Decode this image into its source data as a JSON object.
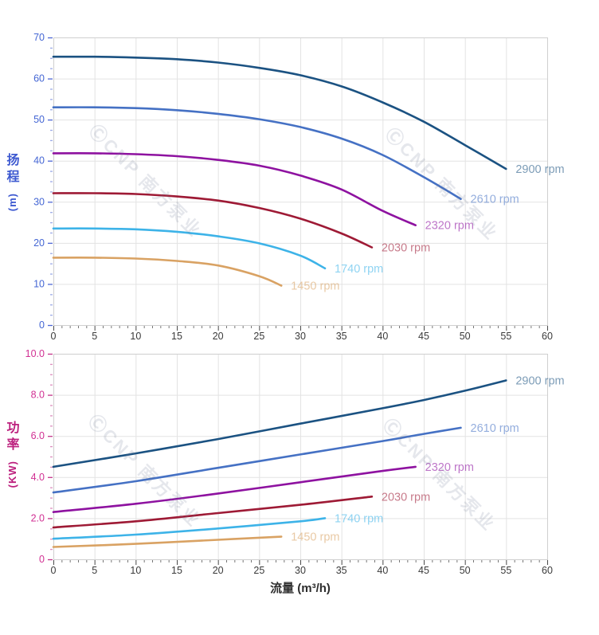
{
  "watermark": {
    "text": "ⒸCNP 南方泵业"
  },
  "chart_data": [
    {
      "type": "line",
      "title": "",
      "ylabel": "扬程 (m)",
      "ylabel_lines": [
        "扬",
        "程"
      ],
      "ylabel_unit": "(m)",
      "xlabel": "",
      "xlim": [
        0,
        60
      ],
      "ylim": [
        0,
        70
      ],
      "grid": true,
      "legend_position": "end-of-line",
      "axis_color": "#3c58d0",
      "tick_label_color": "#4466d4",
      "x_tick_text_color": "#3a3a3a",
      "grid_color": "#e3e3e3",
      "x_ticks": [
        0,
        5,
        10,
        15,
        20,
        25,
        30,
        35,
        40,
        45,
        50,
        55,
        60
      ],
      "x_tick_labels": [
        "0",
        "5",
        "10",
        "15",
        "20",
        "25",
        "30",
        "35",
        "40",
        "45",
        "50",
        "55",
        "60"
      ],
      "y_ticks": [
        0,
        10,
        20,
        30,
        40,
        50,
        60,
        70
      ],
      "y_tick_labels": [
        "0",
        "10",
        "20",
        "30",
        "40",
        "50",
        "60",
        "70"
      ],
      "x_minor_step": 1,
      "y_minor_step": 2.5,
      "series": [
        {
          "name": "2900 rpm",
          "color": "#1b5282",
          "points": [
            [
              0,
              65.3
            ],
            [
              5,
              65.3
            ],
            [
              10,
              65.1
            ],
            [
              15,
              64.7
            ],
            [
              20,
              63.9
            ],
            [
              25,
              62.6
            ],
            [
              30,
              60.8
            ],
            [
              35,
              58.1
            ],
            [
              40,
              54.2
            ],
            [
              45,
              49.5
            ],
            [
              50,
              43.8
            ],
            [
              55,
              38.0
            ]
          ]
        },
        {
          "name": "2610 rpm",
          "color": "#4571c4",
          "points": [
            [
              0,
              53.0
            ],
            [
              5,
              53.0
            ],
            [
              10,
              52.8
            ],
            [
              15,
              52.3
            ],
            [
              20,
              51.4
            ],
            [
              25,
              50.1
            ],
            [
              30,
              48.2
            ],
            [
              35,
              45.4
            ],
            [
              40,
              41.4
            ],
            [
              45,
              36.0
            ],
            [
              49.5,
              30.7
            ]
          ]
        },
        {
          "name": "2320 rpm",
          "color": "#8e12a0",
          "points": [
            [
              0,
              41.8
            ],
            [
              5,
              41.8
            ],
            [
              10,
              41.6
            ],
            [
              15,
              41.1
            ],
            [
              20,
              40.2
            ],
            [
              25,
              38.8
            ],
            [
              30,
              36.4
            ],
            [
              35,
              33.0
            ],
            [
              40,
              27.8
            ],
            [
              44,
              24.3
            ]
          ]
        },
        {
          "name": "2030 rpm",
          "color": "#9e1a35",
          "points": [
            [
              0,
              32.1
            ],
            [
              5,
              32.1
            ],
            [
              10,
              31.9
            ],
            [
              15,
              31.3
            ],
            [
              20,
              30.3
            ],
            [
              25,
              28.5
            ],
            [
              30,
              25.9
            ],
            [
              35,
              22.3
            ],
            [
              38.7,
              18.9
            ]
          ]
        },
        {
          "name": "1740 rpm",
          "color": "#3db3e8",
          "points": [
            [
              0,
              23.5
            ],
            [
              5,
              23.5
            ],
            [
              10,
              23.3
            ],
            [
              15,
              22.7
            ],
            [
              20,
              21.6
            ],
            [
              25,
              19.9
            ],
            [
              30,
              16.9
            ],
            [
              33,
              13.8
            ]
          ]
        },
        {
          "name": "1450 rpm",
          "color": "#d9a263",
          "points": [
            [
              0,
              16.4
            ],
            [
              5,
              16.4
            ],
            [
              10,
              16.2
            ],
            [
              15,
              15.6
            ],
            [
              20,
              14.5
            ],
            [
              25,
              11.9
            ],
            [
              27.7,
              9.6
            ]
          ]
        }
      ]
    },
    {
      "type": "line",
      "title": "",
      "ylabel": "功率 (KW)",
      "ylabel_lines": [
        "功",
        "率"
      ],
      "ylabel_unit": "(KW)",
      "xlabel": "流量 (m³/h)",
      "xlim": [
        0,
        60
      ],
      "ylim": [
        0,
        10
      ],
      "grid": true,
      "legend_position": "end-of-line",
      "axis_color": "#bc1f7d",
      "tick_label_color": "#d13093",
      "x_tick_text_color": "#3a3a3a",
      "grid_color": "#e3e3e3",
      "x_ticks": [
        0,
        5,
        10,
        15,
        20,
        25,
        30,
        35,
        40,
        45,
        50,
        55,
        60
      ],
      "x_tick_labels": [
        "0",
        "5",
        "10",
        "15",
        "20",
        "25",
        "30",
        "35",
        "40",
        "45",
        "50",
        "55",
        "60"
      ],
      "y_ticks": [
        0,
        2,
        4,
        6,
        8,
        10
      ],
      "y_tick_labels": [
        "0",
        "2.0",
        "4.0",
        "6.0",
        "8.0",
        "10.0"
      ],
      "x_minor_step": 1,
      "y_minor_step": 0.5,
      "series": [
        {
          "name": "2900 rpm",
          "color": "#1b5282",
          "points": [
            [
              0,
              4.5
            ],
            [
              10,
              5.15
            ],
            [
              20,
              5.85
            ],
            [
              30,
              6.6
            ],
            [
              40,
              7.35
            ],
            [
              45,
              7.75
            ],
            [
              50,
              8.2
            ],
            [
              55,
              8.7
            ]
          ]
        },
        {
          "name": "2610 rpm",
          "color": "#4571c4",
          "points": [
            [
              0,
              3.25
            ],
            [
              10,
              3.8
            ],
            [
              20,
              4.45
            ],
            [
              30,
              5.1
            ],
            [
              40,
              5.75
            ],
            [
              45,
              6.1
            ],
            [
              49.5,
              6.4
            ]
          ]
        },
        {
          "name": "2320 rpm",
          "color": "#8e12a0",
          "points": [
            [
              0,
              2.3
            ],
            [
              10,
              2.7
            ],
            [
              20,
              3.2
            ],
            [
              30,
              3.75
            ],
            [
              40,
              4.3
            ],
            [
              44,
              4.5
            ]
          ]
        },
        {
          "name": "2030 rpm",
          "color": "#9e1a35",
          "points": [
            [
              0,
              1.55
            ],
            [
              10,
              1.85
            ],
            [
              20,
              2.25
            ],
            [
              30,
              2.65
            ],
            [
              38.7,
              3.05
            ]
          ]
        },
        {
          "name": "1740 rpm",
          "color": "#3db3e8",
          "points": [
            [
              0,
              1.0
            ],
            [
              10,
              1.2
            ],
            [
              20,
              1.5
            ],
            [
              30,
              1.85
            ],
            [
              33,
              2.0
            ]
          ]
        },
        {
          "name": "1450 rpm",
          "color": "#d9a263",
          "points": [
            [
              0,
              0.6
            ],
            [
              10,
              0.75
            ],
            [
              20,
              0.95
            ],
            [
              27.7,
              1.1
            ]
          ]
        }
      ]
    }
  ]
}
